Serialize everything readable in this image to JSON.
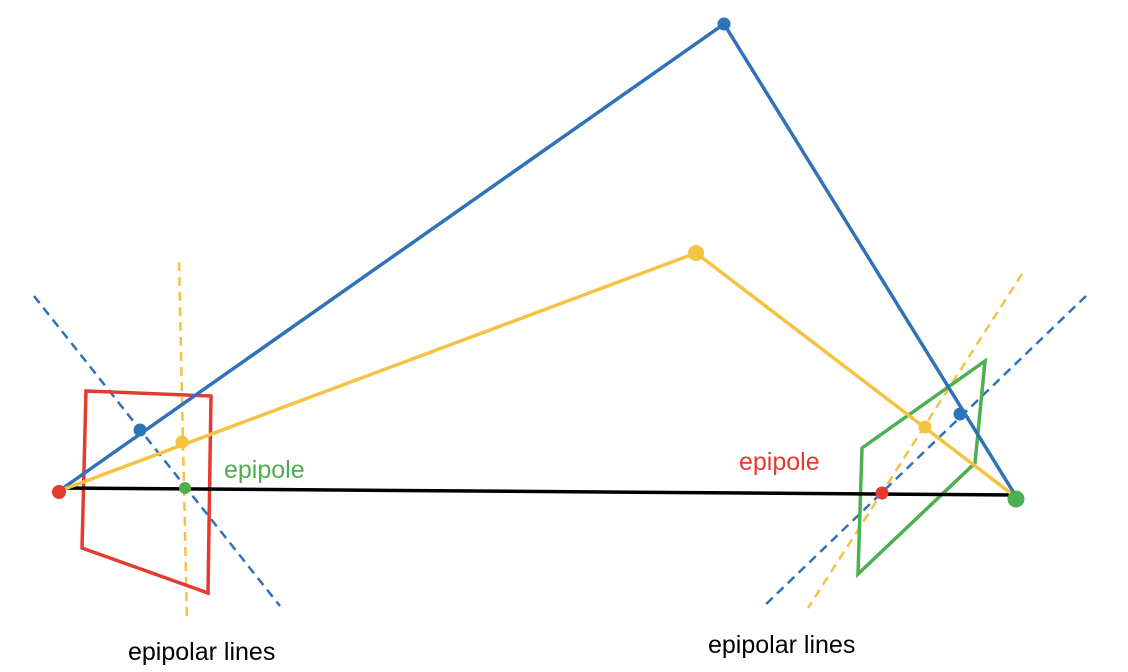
{
  "labels": {
    "epipole_left": "epipole",
    "epipole_right": "epipole",
    "epipolar_lines_left": "epipolar lines",
    "epipolar_lines_right": "epipolar lines"
  },
  "colors": {
    "blue": "#2e72b8",
    "yellow": "#f5c242",
    "red": "#e53a2f",
    "green": "#4caf50",
    "black": "#000000"
  }
}
